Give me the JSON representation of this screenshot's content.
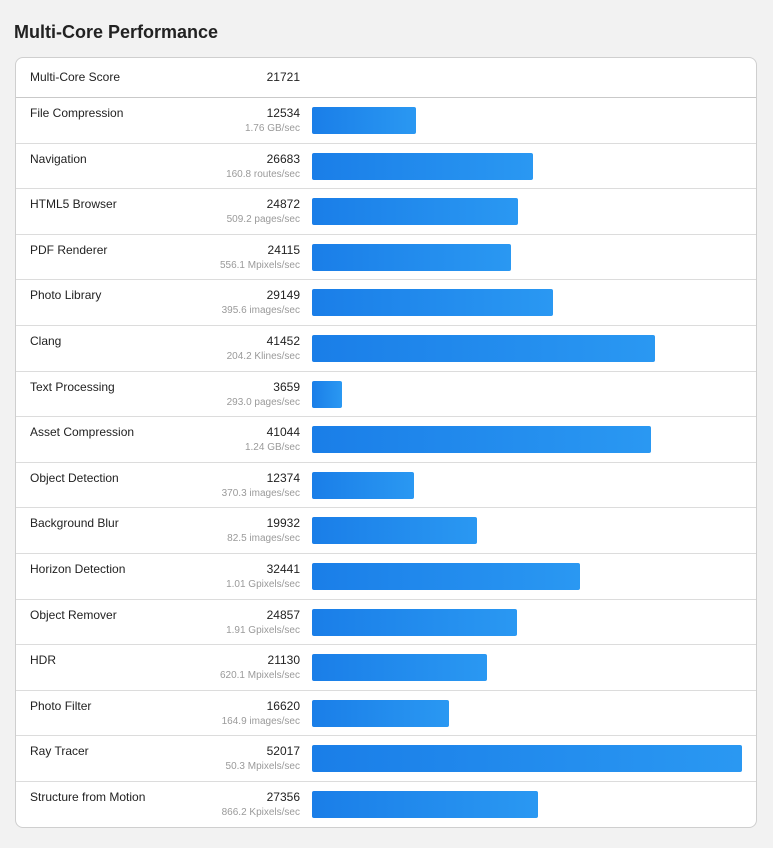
{
  "title": "Multi-Core Performance",
  "summary": {
    "label": "Multi-Core Score",
    "score": "21721"
  },
  "colors": {
    "bar_start": "#1a7ee8",
    "bar_end": "#2a98f2"
  },
  "bar_scale_max": 52017,
  "tests": [
    {
      "name": "File Compression",
      "score": "12534",
      "rate": "1.76 GB/sec",
      "value": 12534
    },
    {
      "name": "Navigation",
      "score": "26683",
      "rate": "160.8 routes/sec",
      "value": 26683
    },
    {
      "name": "HTML5 Browser",
      "score": "24872",
      "rate": "509.2 pages/sec",
      "value": 24872
    },
    {
      "name": "PDF Renderer",
      "score": "24115",
      "rate": "556.1 Mpixels/sec",
      "value": 24115
    },
    {
      "name": "Photo Library",
      "score": "29149",
      "rate": "395.6 images/sec",
      "value": 29149
    },
    {
      "name": "Clang",
      "score": "41452",
      "rate": "204.2 Klines/sec",
      "value": 41452
    },
    {
      "name": "Text Processing",
      "score": "3659",
      "rate": "293.0 pages/sec",
      "value": 3659
    },
    {
      "name": "Asset Compression",
      "score": "41044",
      "rate": "1.24 GB/sec",
      "value": 41044
    },
    {
      "name": "Object Detection",
      "score": "12374",
      "rate": "370.3 images/sec",
      "value": 12374
    },
    {
      "name": "Background Blur",
      "score": "19932",
      "rate": "82.5 images/sec",
      "value": 19932
    },
    {
      "name": "Horizon Detection",
      "score": "32441",
      "rate": "1.01 Gpixels/sec",
      "value": 32441
    },
    {
      "name": "Object Remover",
      "score": "24857",
      "rate": "1.91 Gpixels/sec",
      "value": 24857
    },
    {
      "name": "HDR",
      "score": "21130",
      "rate": "620.1 Mpixels/sec",
      "value": 21130
    },
    {
      "name": "Photo Filter",
      "score": "16620",
      "rate": "164.9 images/sec",
      "value": 16620
    },
    {
      "name": "Ray Tracer",
      "score": "52017",
      "rate": "50.3 Mpixels/sec",
      "value": 52017
    },
    {
      "name": "Structure from Motion",
      "score": "27356",
      "rate": "866.2 Kpixels/sec",
      "value": 27356
    }
  ]
}
